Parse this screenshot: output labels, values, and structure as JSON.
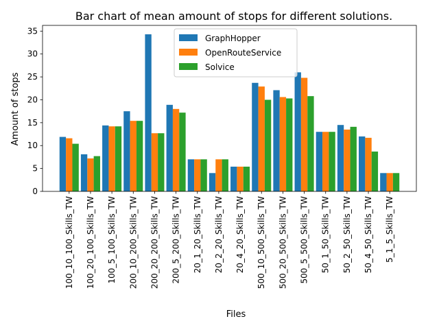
{
  "chart_data": {
    "type": "bar",
    "title": "Bar chart of mean amount of stops for different solutions.",
    "xlabel": "Files",
    "ylabel": "Amount of stops",
    "ylim": [
      0,
      36.25
    ],
    "yticks": [
      0,
      5,
      10,
      15,
      20,
      25,
      30,
      35
    ],
    "grid": false,
    "legend_position": "top-center",
    "categories": [
      "100_10_100_Skills_TW",
      "100_20_100_Skills_TW",
      "100_5_100_Skills_TW",
      "200_10_200_Skills_TW",
      "200_20_200_Skills_TW",
      "200_5_200_Skills_TW",
      "20_1_20_Skills_TW",
      "20_2_20_Skills_TW",
      "20_4_20_Skills_TW",
      "500_10_500_Skills_TW",
      "500_20_500_Skills_TW",
      "500_5_500_Skills_TW",
      "50_1_50_Skills_TW",
      "50_2_50_Skills_TW",
      "50_4_50_Skills_TW",
      "5_1_5_Skills_TW"
    ],
    "series": [
      {
        "name": "GraphHopper",
        "color": "#1f77b4",
        "values": [
          11.9,
          8.1,
          14.4,
          17.5,
          34.3,
          18.9,
          7.0,
          4.0,
          5.4,
          23.7,
          22.1,
          26.0,
          13.0,
          14.5,
          12.0,
          4.0
        ]
      },
      {
        "name": "OpenRouteService",
        "color": "#ff7f0e",
        "values": [
          11.6,
          7.2,
          14.2,
          15.4,
          12.7,
          18.0,
          7.0,
          7.0,
          5.4,
          22.9,
          20.6,
          24.8,
          13.0,
          13.5,
          11.7,
          4.0
        ]
      },
      {
        "name": "Solvice",
        "color": "#2ca02c",
        "values": [
          10.4,
          7.7,
          14.2,
          15.4,
          12.7,
          17.2,
          7.0,
          7.0,
          5.4,
          20.0,
          20.3,
          20.8,
          13.0,
          14.1,
          8.7,
          4.0
        ]
      }
    ]
  }
}
